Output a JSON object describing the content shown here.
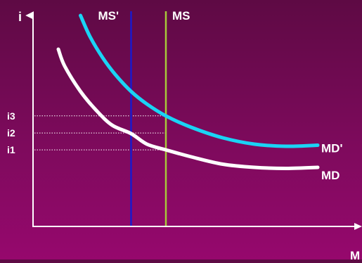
{
  "chart_data": {
    "type": "line",
    "title": "",
    "xlabel": "M",
    "ylabel": "i",
    "xlim": [
      0,
      100
    ],
    "ylim": [
      0,
      100
    ],
    "grid": false,
    "rate_levels": [
      {
        "label": "i3",
        "value": 52.4
      },
      {
        "label": "i2",
        "value": 44.3
      },
      {
        "label": "i1",
        "value": 36.3
      }
    ],
    "vertical_lines": [
      {
        "name": "MS'",
        "x": 31,
        "color": "#1a1acc"
      },
      {
        "name": "MS",
        "x": 42,
        "color": "#a8c83a"
      }
    ],
    "series": [
      {
        "name": "MD",
        "color": "#ffffff",
        "x": [
          8,
          10,
          15,
          20,
          25,
          31,
          36,
          42,
          50,
          60,
          70,
          80,
          90
        ],
        "y": [
          84,
          76,
          64,
          55,
          48,
          44,
          39,
          36.3,
          33,
          29.5,
          28,
          27.5,
          28
        ]
      },
      {
        "name": "MD'",
        "color": "#1ad4f5",
        "x": [
          15,
          18,
          22,
          26,
          31,
          36,
          42,
          50,
          60,
          70,
          80,
          90
        ],
        "y": [
          100,
          90,
          80,
          72,
          64,
          58,
          52.4,
          47,
          42,
          39,
          38,
          38.5
        ]
      }
    ]
  }
}
